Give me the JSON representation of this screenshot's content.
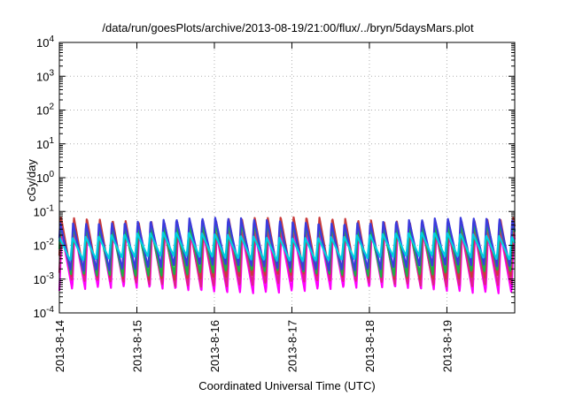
{
  "chart_data": {
    "type": "line",
    "title": "/data/run/goesPlots/archive/2013-08-19/21:00/flux/../bryn/5daysMars.plot",
    "xlabel": "Coordinated Universal Time (UTC)",
    "ylabel": "cGy/day",
    "yscale": "log",
    "ylim": [
      0.0001,
      10000
    ],
    "xlim": [
      "2013-08-14 00:00",
      "2013-08-19 21:00"
    ],
    "grid": true,
    "x_ticks": [
      "2013-8-14",
      "2013-8-15",
      "2013-8-16",
      "2013-8-17",
      "2013-8-18",
      "2013-8-19"
    ],
    "y_ticks": [
      {
        "value": 0.0001,
        "base": "10",
        "exp": "-4"
      },
      {
        "value": 0.001,
        "base": "10",
        "exp": "-3"
      },
      {
        "value": 0.01,
        "base": "10",
        "exp": "-2"
      },
      {
        "value": 0.1,
        "base": "10",
        "exp": "-1"
      },
      {
        "value": 1,
        "base": "10",
        "exp": "0"
      },
      {
        "value": 10,
        "base": "10",
        "exp": "1"
      },
      {
        "value": 100,
        "base": "10",
        "exp": "2"
      },
      {
        "value": 1000,
        "base": "10",
        "exp": "3"
      },
      {
        "value": 10000,
        "base": "10",
        "exp": "4"
      }
    ],
    "oscillation_period_hours": 4,
    "series": [
      {
        "color": "#ff00ff",
        "max": 0.025,
        "min": 0.00045
      },
      {
        "color": "#e0208a",
        "max": 0.03,
        "min": 0.0007
      },
      {
        "color": "#c83a3a",
        "max": 0.06,
        "min": 0.0011
      },
      {
        "color": "#1ab04a",
        "max": 0.04,
        "min": 0.0014
      },
      {
        "color": "#3b3bdd",
        "max": 0.055,
        "min": 0.0021
      },
      {
        "color": "#00d0e0",
        "max": 0.02,
        "min": 0.004
      }
    ]
  }
}
